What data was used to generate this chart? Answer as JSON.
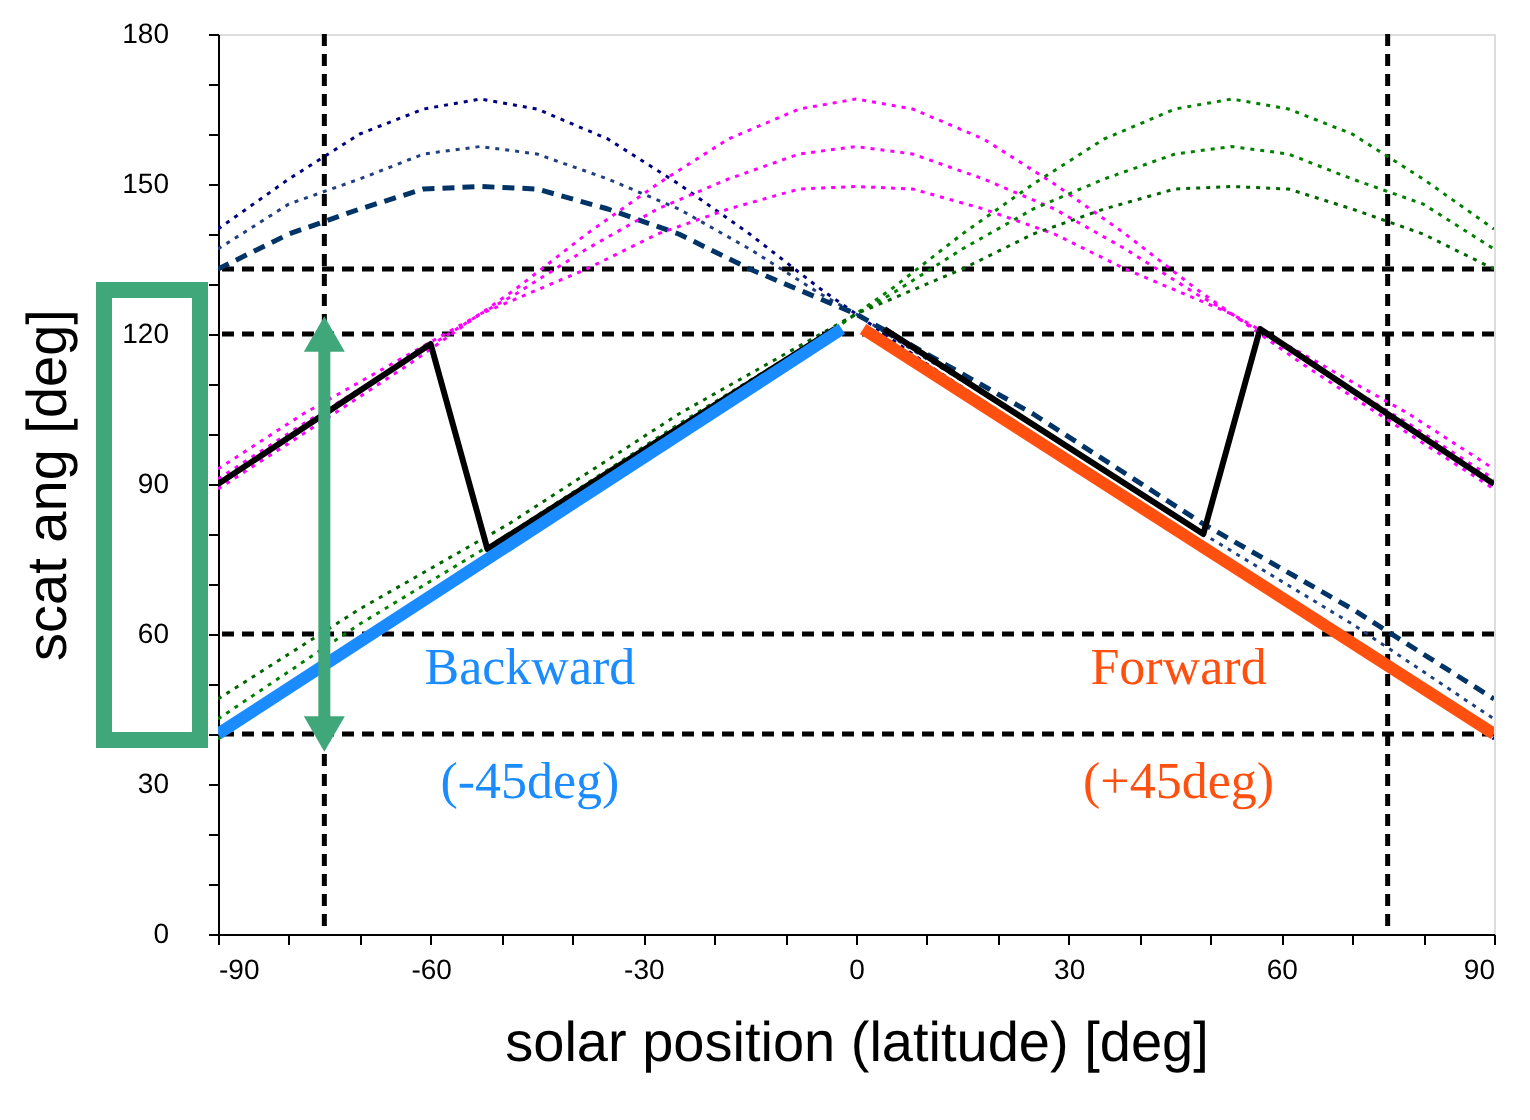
{
  "chart_data": {
    "type": "line",
    "xlabel": "solar position (latitude) [deg]",
    "ylabel": "scat ang [deg]",
    "xlim": [
      -90,
      90
    ],
    "ylim": [
      0,
      180
    ],
    "xticks": [
      -90,
      {
        "value": -80,
        "label": null
      },
      {
        "value": -70,
        "label": null
      },
      -60,
      {
        "value": -50,
        "label": null
      },
      {
        "value": -40,
        "label": null
      },
      -30,
      {
        "value": -20,
        "label": null
      },
      {
        "value": -10,
        "label": null
      },
      0,
      {
        "value": 10,
        "label": null
      },
      {
        "value": 20,
        "label": null
      },
      30,
      {
        "value": 40,
        "label": null
      },
      {
        "value": 50,
        "label": null
      },
      60,
      {
        "value": 70,
        "label": null
      },
      {
        "value": 80,
        "label": null
      },
      90
    ],
    "yticks": [
      0,
      {
        "value": 10,
        "label": null
      },
      {
        "value": 20,
        "label": null
      },
      30,
      {
        "value": 40,
        "label": null
      },
      {
        "value": 50,
        "label": null
      },
      60,
      {
        "value": 70,
        "label": null
      },
      {
        "value": 80,
        "label": null
      },
      90,
      {
        "value": 100,
        "label": null
      },
      {
        "value": 110,
        "label": null
      },
      120,
      {
        "value": 130,
        "label": null
      },
      {
        "value": 140,
        "label": null
      },
      150,
      {
        "value": 160,
        "label": null
      },
      {
        "value": 170,
        "label": null
      },
      180
    ],
    "grid": false,
    "ref_lines": [
      {
        "axis": "x",
        "value": -75,
        "line_style": "dashed",
        "color": "#000000"
      },
      {
        "axis": "x",
        "value": 75,
        "line_style": "dashed",
        "color": "#000000"
      },
      {
        "axis": "y",
        "value": 133,
        "line_style": "dashed",
        "color": "#000000"
      },
      {
        "axis": "y",
        "value": 120,
        "line_style": "dashed",
        "color": "#000000"
      },
      {
        "axis": "y",
        "value": 60,
        "line_style": "dashed",
        "color": "#000000"
      },
      {
        "axis": "y",
        "value": 40,
        "line_style": "dashed",
        "color": "#000000"
      }
    ],
    "series": [
      {
        "color": "#000080",
        "line_style": "dotted",
        "x": [
          -90,
          -80,
          -70,
          -61,
          -53,
          -45,
          -35,
          -25,
          -15,
          -5,
          0,
          10,
          25,
          49,
          70,
          90
        ],
        "values": [
          141,
          151,
          160,
          165,
          167,
          165,
          159,
          150,
          140,
          129,
          124,
          114,
          100,
          78,
          58,
          39
        ]
      },
      {
        "color": "#1f3f7f",
        "line_style": "dotted",
        "x": [
          -90,
          -80,
          -70,
          -61,
          -53,
          -45,
          -35,
          -25,
          -15,
          -5,
          0,
          10,
          25,
          49,
          70,
          90
        ],
        "values": [
          137,
          146,
          151,
          156,
          157.5,
          156,
          151,
          145,
          137,
          128,
          124,
          115,
          102,
          80,
          62,
          43
        ]
      },
      {
        "color": "#003366",
        "line_style": "dashed",
        "x": [
          -90,
          -80,
          -70,
          -61,
          -53,
          -45,
          -35,
          -25,
          -15,
          -5,
          0,
          10,
          25,
          49,
          70,
          90
        ],
        "values": [
          133,
          140,
          145,
          149,
          149.5,
          149,
          145,
          140,
          133,
          127,
          124,
          116,
          104,
          82,
          65,
          47
        ]
      },
      {
        "color": "#ff00ff",
        "line_style": "dotted",
        "x": [
          -90,
          -78,
          -63,
          -53,
          -48,
          -38,
          -28,
          -18,
          -8,
          0,
          8,
          18,
          28,
          38,
          48,
          53,
          63,
          78,
          90
        ],
        "values": [
          89,
          100,
          114,
          124,
          129,
          140,
          150,
          159,
          165,
          167,
          165,
          159,
          150,
          140,
          129,
          124,
          114,
          100,
          89
        ]
      },
      {
        "color": "#ff00ff",
        "line_style": "dotted",
        "x": [
          -90,
          -78,
          -63,
          -53,
          -48,
          -38,
          -28,
          -18,
          -8,
          0,
          8,
          18,
          28,
          38,
          48,
          53,
          63,
          78,
          90
        ],
        "values": [
          91,
          102,
          115,
          124,
          128,
          137,
          145,
          151,
          156,
          157.5,
          156,
          151,
          145,
          137,
          128,
          124,
          115,
          102,
          91
        ]
      },
      {
        "color": "#ff00ff",
        "line_style": "dotted",
        "x": [
          -90,
          -78,
          -63,
          -53,
          -48,
          -38,
          -28,
          -18,
          -8,
          0,
          8,
          18,
          28,
          38,
          48,
          53,
          63,
          78,
          90
        ],
        "values": [
          93,
          104,
          116,
          124,
          127,
          133,
          140,
          145,
          149,
          149.5,
          149,
          145,
          140,
          133,
          127,
          124,
          116,
          104,
          93
        ]
      },
      {
        "color": "#008000",
        "line_style": "dotted",
        "x": [
          -90,
          -70,
          -49,
          -25,
          -10,
          0,
          5,
          15,
          25,
          35,
          45,
          53,
          61,
          70,
          80,
          90
        ],
        "values": [
          39,
          58,
          78,
          100,
          114,
          124,
          129,
          140,
          150,
          159,
          165,
          167,
          165,
          160,
          151,
          141
        ]
      },
      {
        "color": "#008000",
        "line_style": "dotted",
        "x": [
          -90,
          -70,
          -49,
          -25,
          -10,
          0,
          5,
          15,
          25,
          35,
          45,
          53,
          61,
          70,
          80,
          90
        ],
        "values": [
          43,
          62,
          80,
          102,
          115,
          124,
          128,
          137,
          145,
          151,
          156,
          157.5,
          156,
          151,
          146,
          137
        ]
      },
      {
        "color": "#006400",
        "line_style": "dotted",
        "x": [
          -90,
          -70,
          -49,
          -25,
          -10,
          0,
          5,
          15,
          25,
          35,
          45,
          53,
          61,
          70,
          80,
          90
        ],
        "values": [
          47,
          65,
          82,
          104,
          116,
          124,
          127,
          133,
          140,
          145,
          149,
          149.5,
          149,
          145,
          140,
          133
        ]
      },
      {
        "color": "#000000",
        "line_style": "solid",
        "x": [
          -90,
          -60,
          -52,
          -3,
          0,
          4,
          49,
          57,
          75,
          90
        ],
        "values": [
          90,
          118,
          77,
          121,
          null,
          121,
          80,
          121,
          104,
          90
        ]
      },
      {
        "name": "Backward (-45deg)",
        "color": "#1a8cff",
        "line_style": "solid",
        "x": [
          -90,
          -2
        ],
        "values": [
          40,
          121
        ]
      },
      {
        "name": "Forward (+45deg)",
        "color": "#ff5010",
        "line_style": "solid",
        "x": [
          1,
          90
        ],
        "values": [
          121,
          40
        ]
      }
    ]
  }
}
